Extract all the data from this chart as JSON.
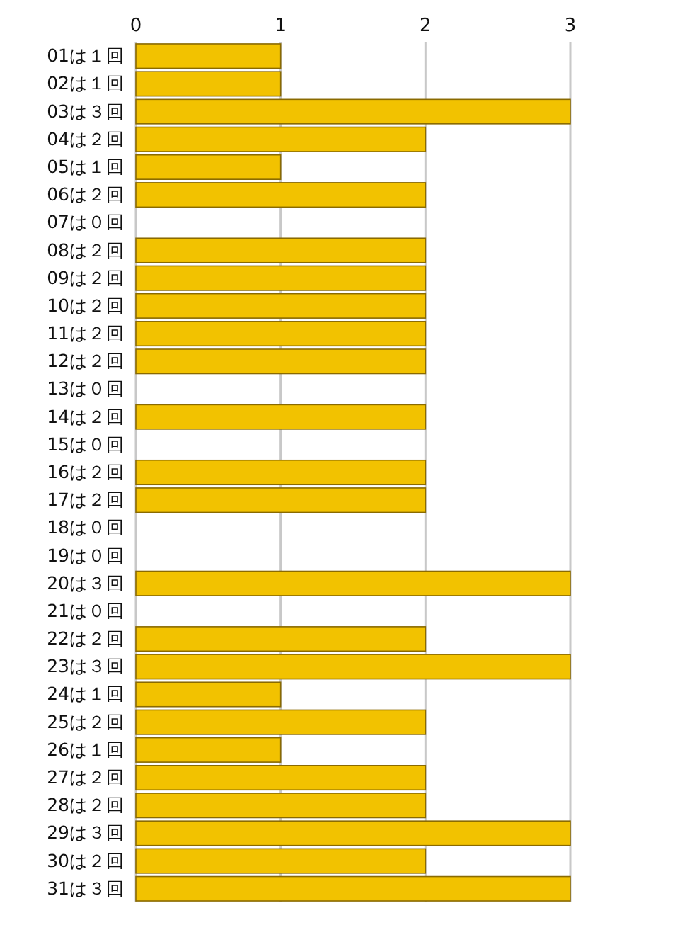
{
  "chart_data": {
    "type": "bar",
    "orientation": "horizontal",
    "categories": [
      "01は１回",
      "02は１回",
      "03は３回",
      "04は２回",
      "05は１回",
      "06は２回",
      "07は０回",
      "08は２回",
      "09は２回",
      "10は２回",
      "11は２回",
      "12は２回",
      "13は０回",
      "14は２回",
      "15は０回",
      "16は２回",
      "17は２回",
      "18は０回",
      "19は０回",
      "20は３回",
      "21は０回",
      "22は２回",
      "23は３回",
      "24は１回",
      "25は２回",
      "26は１回",
      "27は２回",
      "28は２回",
      "29は３回",
      "30は２回",
      "31は３回"
    ],
    "values": [
      1,
      1,
      3,
      2,
      1,
      2,
      0,
      2,
      2,
      2,
      2,
      2,
      0,
      2,
      0,
      2,
      2,
      0,
      0,
      3,
      0,
      2,
      3,
      1,
      2,
      1,
      2,
      2,
      3,
      2,
      3
    ],
    "color": "#f2c200",
    "xlim": [
      0,
      3
    ],
    "xticks": [
      0,
      1,
      2,
      3
    ],
    "grid": "x"
  }
}
